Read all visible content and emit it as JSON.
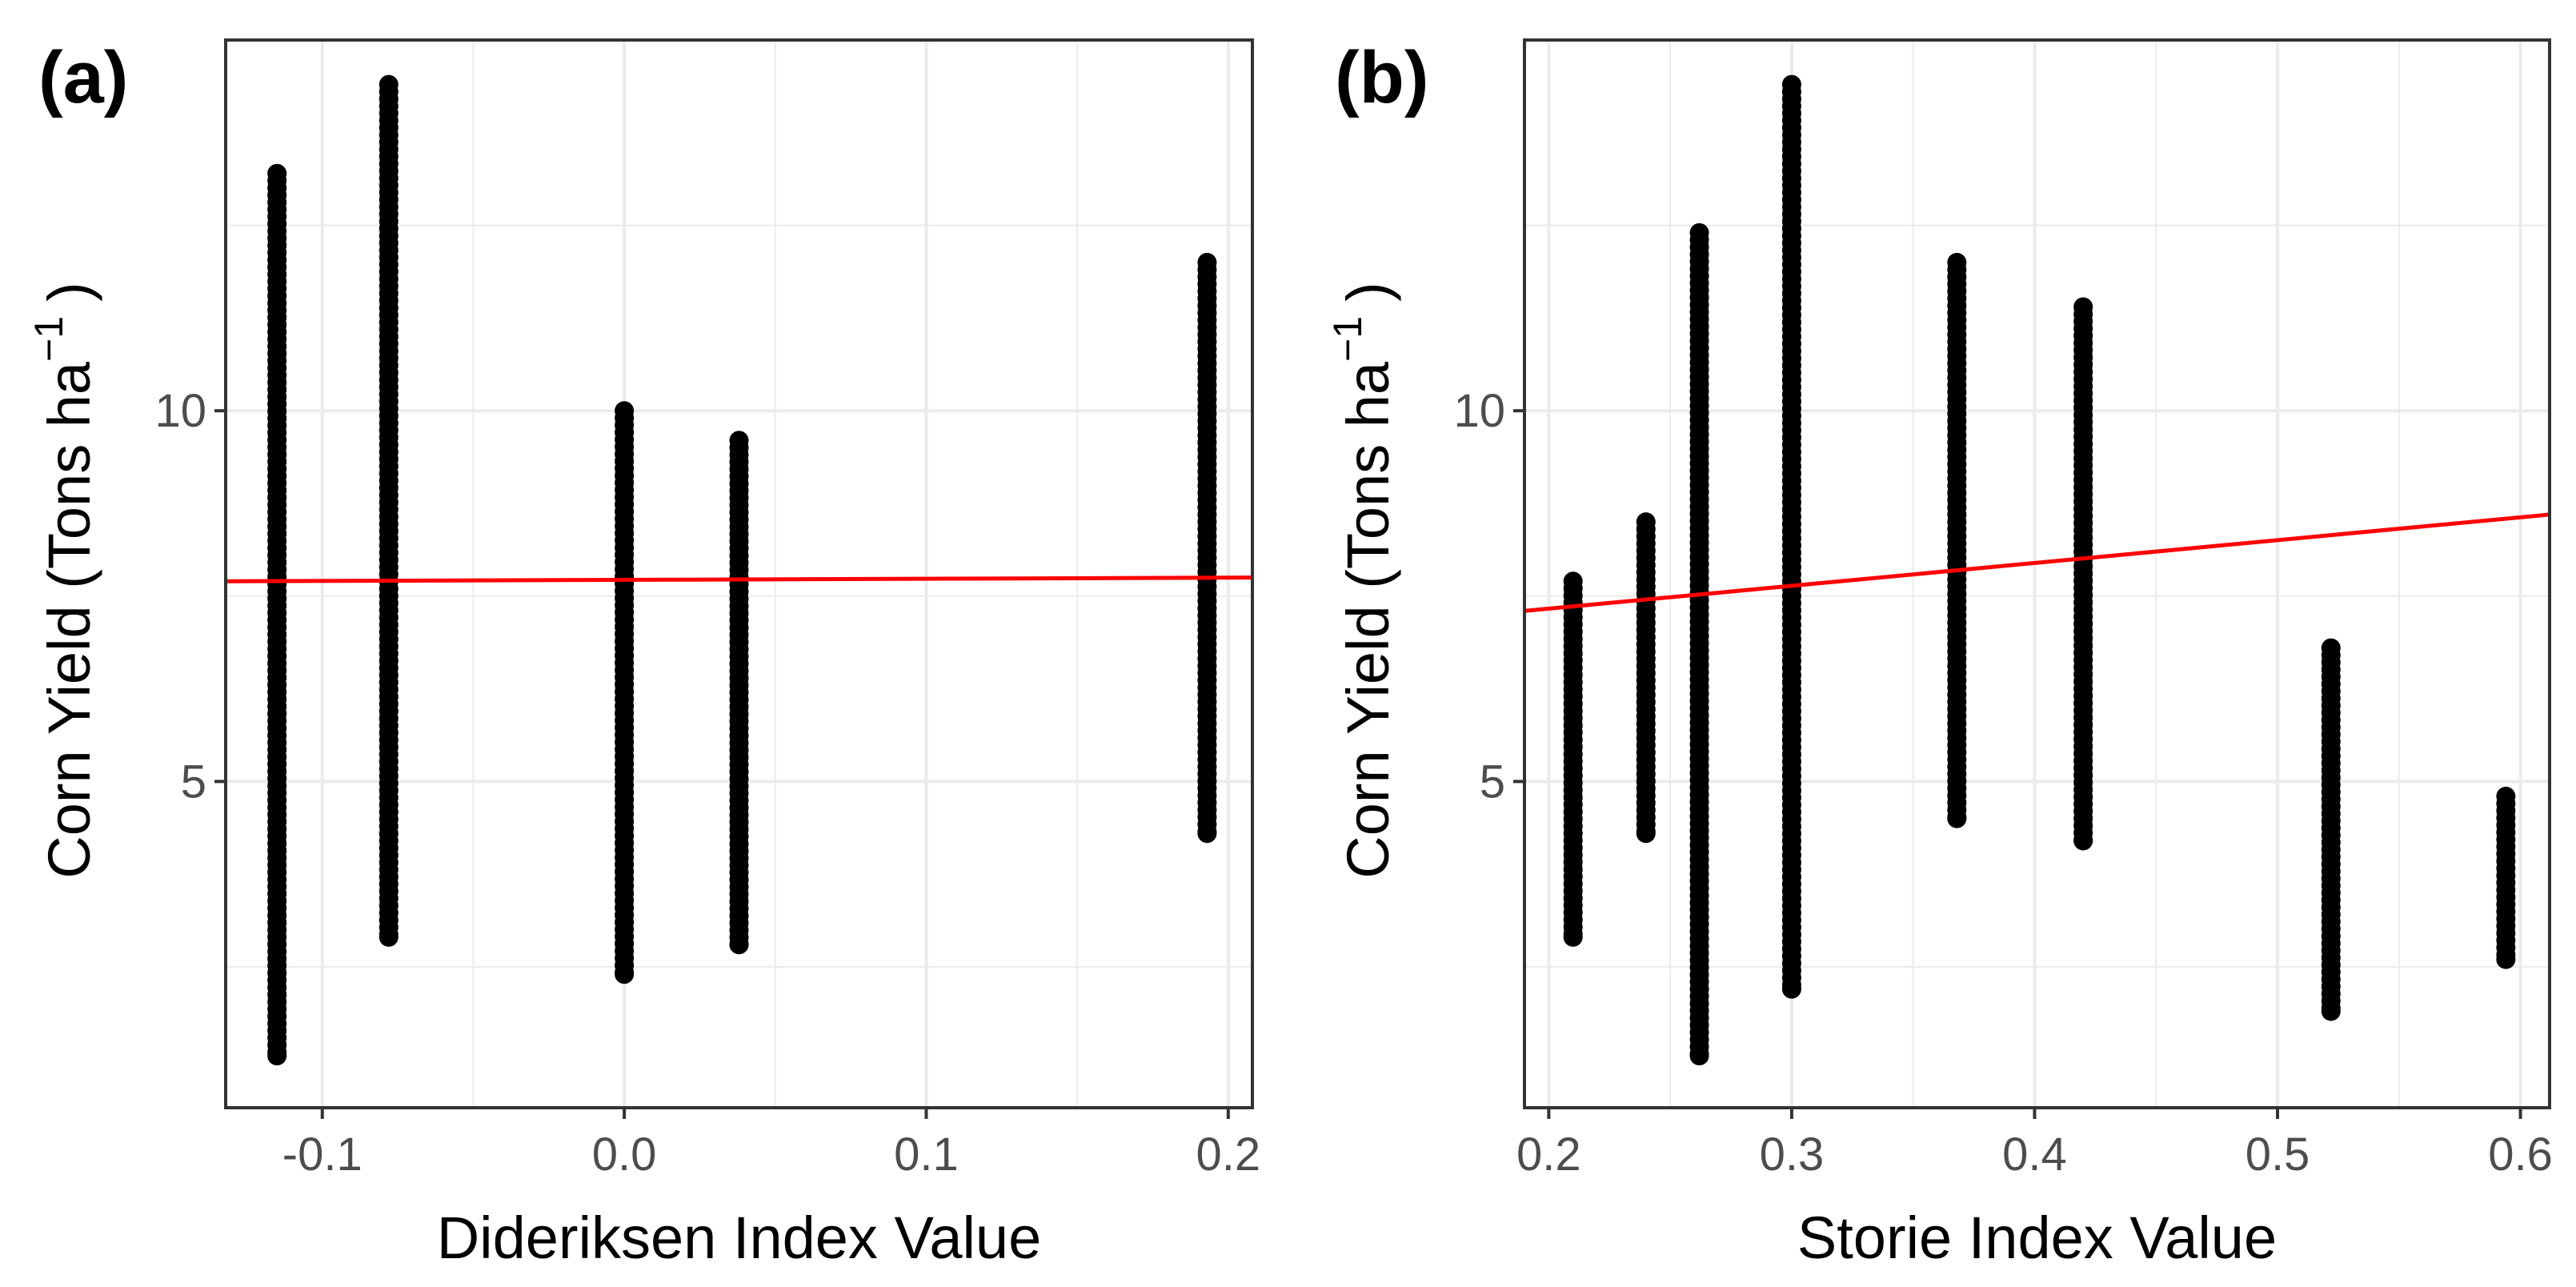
{
  "chart_data": [
    {
      "type": "scatter",
      "panel_label": "(a)",
      "xlabel": "Dideriksen Index Value",
      "ylabel": {
        "main": "Corn Yield (Tons  ha",
        "sup": "−1",
        "close": ")"
      },
      "xlim": [
        -0.132,
        0.208
      ],
      "ylim": [
        0.6,
        15.0
      ],
      "xticks": [
        -0.1,
        0.0,
        0.1,
        0.2
      ],
      "xtick_labels": [
        "-0.1",
        "0.0",
        "0.1",
        "0.2"
      ],
      "yticks": [
        5,
        10
      ],
      "ytick_labels": [
        "5",
        "10"
      ],
      "grid": true,
      "point_color": "#000000",
      "line_color": "#ff0000",
      "columns": [
        {
          "x": -0.115,
          "ymin": 1.3,
          "ymax": 13.2
        },
        {
          "x": -0.078,
          "ymin": 2.9,
          "ymax": 14.4
        },
        {
          "x": 0.0,
          "ymin": 2.4,
          "ymax": 10.0
        },
        {
          "x": 0.038,
          "ymin": 2.8,
          "ymax": 9.6
        },
        {
          "x": 0.193,
          "ymin": 4.3,
          "ymax": 12.0
        }
      ],
      "fit_line": {
        "x": [
          -0.132,
          0.208
        ],
        "y": [
          7.7,
          7.75
        ]
      }
    },
    {
      "type": "scatter",
      "panel_label": "(b)",
      "xlabel": "Storie Index Value",
      "ylabel": {
        "main": "Corn Yield (Tons  ha",
        "sup": "−1",
        "close": ")"
      },
      "xlim": [
        0.19,
        0.612
      ],
      "ylim": [
        0.6,
        15.0
      ],
      "xticks": [
        0.2,
        0.3,
        0.4,
        0.5,
        0.6
      ],
      "xtick_labels": [
        "0.2",
        "0.3",
        "0.4",
        "0.5",
        "0.6"
      ],
      "yticks": [
        5,
        10
      ],
      "ytick_labels": [
        "5",
        "10"
      ],
      "grid": true,
      "point_color": "#000000",
      "line_color": "#ff0000",
      "columns": [
        {
          "x": 0.21,
          "ymin": 2.9,
          "ymax": 7.7
        },
        {
          "x": 0.24,
          "ymin": 4.3,
          "ymax": 8.5
        },
        {
          "x": 0.262,
          "ymin": 1.3,
          "ymax": 12.4
        },
        {
          "x": 0.3,
          "ymin": 2.2,
          "ymax": 14.4
        },
        {
          "x": 0.368,
          "ymin": 4.5,
          "ymax": 12.0
        },
        {
          "x": 0.42,
          "ymin": 4.2,
          "ymax": 11.4
        },
        {
          "x": 0.522,
          "ymin": 1.9,
          "ymax": 6.8
        },
        {
          "x": 0.594,
          "ymin": 2.6,
          "ymax": 4.8
        }
      ],
      "fit_line": {
        "x": [
          0.19,
          0.612
        ],
        "y": [
          7.3,
          8.6
        ]
      }
    }
  ]
}
